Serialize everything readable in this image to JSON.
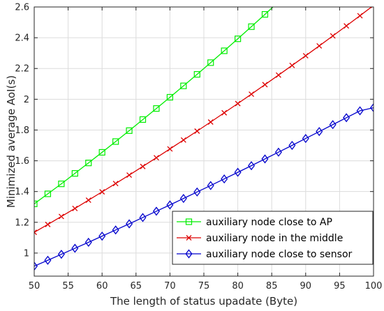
{
  "chart_data": {
    "type": "line",
    "xlabel": "The length of status upadate (Byte)",
    "ylabel": "Minimized average AoI(s)",
    "xlim": [
      50,
      100
    ],
    "ylim": [
      0.85,
      2.6
    ],
    "xticks": [
      50,
      55,
      60,
      65,
      70,
      75,
      80,
      85,
      90,
      95,
      100
    ],
    "yticks": [
      1,
      1.2,
      1.4,
      1.6,
      1.8,
      2,
      2.2,
      2.4,
      2.6
    ],
    "ytick_labels": [
      "1",
      "1.2",
      "1.4",
      "1.6",
      "1.8",
      "2",
      "2.2",
      "2.4",
      "2.6"
    ],
    "grid": true,
    "legend_position": "bottom-right",
    "series": [
      {
        "name": "auxiliary node close to AP",
        "color": "#00ee00",
        "marker": "square",
        "x": [
          50,
          52,
          54,
          56,
          58,
          60,
          62,
          64,
          66,
          68,
          70,
          72,
          74,
          76,
          78,
          80,
          82,
          84,
          86
        ],
        "y": [
          1.32,
          1.385,
          1.45,
          1.518,
          1.586,
          1.655,
          1.725,
          1.796,
          1.868,
          1.94,
          2.013,
          2.087,
          2.162,
          2.238,
          2.315,
          2.393,
          2.472,
          2.552,
          2.633
        ]
      },
      {
        "name": "auxiliary node in the middle",
        "color": "#dd0000",
        "marker": "x",
        "x": [
          50,
          52,
          54,
          56,
          58,
          60,
          62,
          64,
          66,
          68,
          70,
          72,
          74,
          76,
          78,
          80,
          82,
          84,
          86,
          88,
          90,
          92,
          94,
          96,
          98,
          100
        ],
        "y": [
          1.135,
          1.186,
          1.238,
          1.29,
          1.344,
          1.398,
          1.452,
          1.507,
          1.563,
          1.62,
          1.677,
          1.735,
          1.793,
          1.852,
          1.912,
          1.972,
          2.033,
          2.095,
          2.157,
          2.22,
          2.283,
          2.347,
          2.412,
          2.477,
          2.543,
          2.61
        ]
      },
      {
        "name": "auxiliary node close to sensor",
        "color": "#0000cc",
        "marker": "diamond",
        "x": [
          50,
          52,
          54,
          56,
          58,
          60,
          62,
          64,
          66,
          68,
          70,
          72,
          74,
          76,
          78,
          80,
          82,
          84,
          86,
          88,
          90,
          92,
          94,
          96,
          98,
          100
        ],
        "y": [
          0.915,
          0.953,
          0.992,
          1.031,
          1.07,
          1.11,
          1.15,
          1.19,
          1.231,
          1.272,
          1.313,
          1.355,
          1.397,
          1.439,
          1.482,
          1.525,
          1.568,
          1.612,
          1.656,
          1.7,
          1.745,
          1.79,
          1.835,
          1.88,
          1.925,
          1.945
        ]
      }
    ]
  }
}
